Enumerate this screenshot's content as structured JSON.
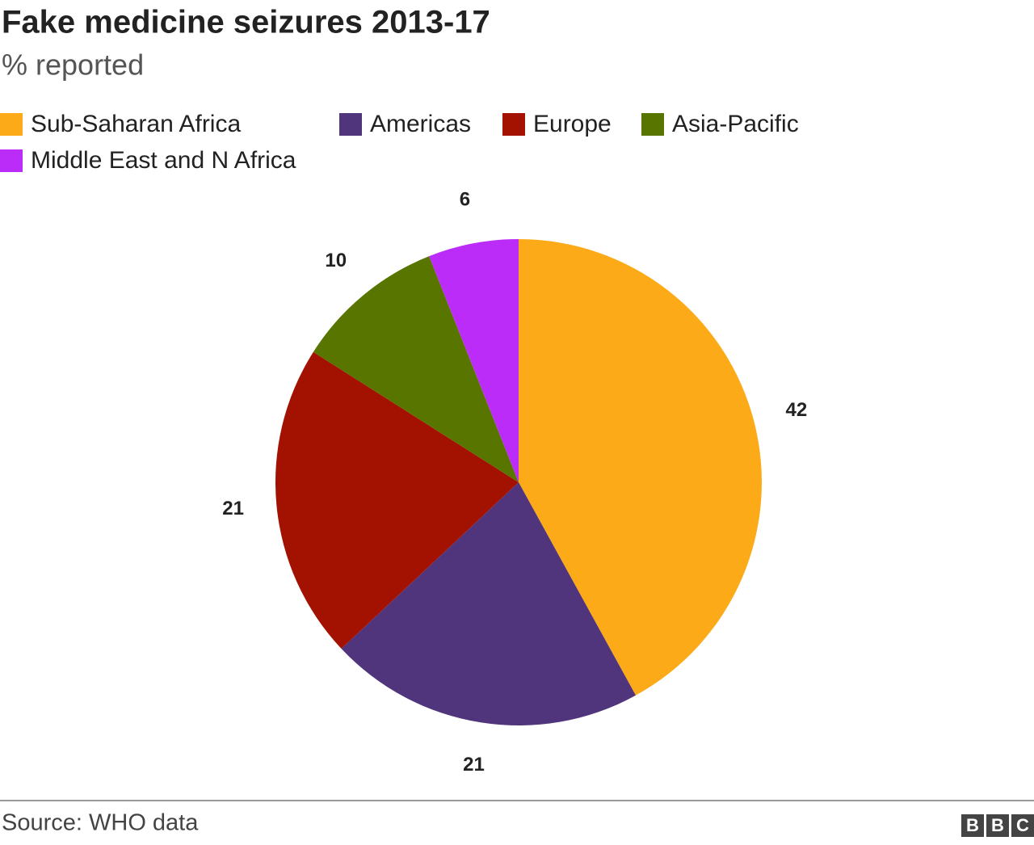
{
  "chart_data": {
    "type": "pie",
    "title": "Fake medicine seizures 2013-17",
    "subtitle": "% reported",
    "categories": [
      "Sub-Saharan Africa",
      "Americas",
      "Europe",
      "Asia-Pacific",
      "Middle East and N Africa"
    ],
    "values": [
      42,
      21,
      21,
      10,
      6
    ],
    "colors": [
      "#fdaa19",
      "#50347c",
      "#a31200",
      "#587500",
      "#bc2cf8"
    ],
    "source": "Source: WHO data",
    "logo": [
      "B",
      "B",
      "C"
    ]
  }
}
